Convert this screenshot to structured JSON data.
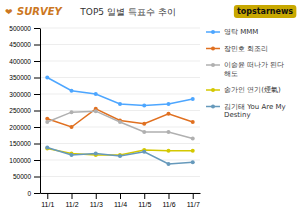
{
  "chart_data": {
    "type": "line",
    "title": "TOP5 일별 득표수 추이",
    "annotations": [
      "❤",
      "SURVEY",
      "topstarnews"
    ],
    "categories": [
      "11/1",
      "11/2",
      "11/3",
      "11/4",
      "11/5",
      "11/6",
      "11/7"
    ],
    "series": [
      {
        "name": "영탁 MMM",
        "color": "#4da6ff",
        "values": [
          350000,
          310000,
          300000,
          270000,
          265000,
          270000,
          285000
        ]
      },
      {
        "name": "장민호 회조리",
        "color": "#e07020",
        "values": [
          225000,
          200000,
          255000,
          220000,
          210000,
          240000,
          215000
        ]
      },
      {
        "name": "이승윤 떠나가 된다\n해도",
        "color": "#b0b0b0",
        "values": [
          215000,
          245000,
          248000,
          215000,
          185000,
          185000,
          165000
        ]
      },
      {
        "name": "송가인 연기(煙氣)",
        "color": "#d4c800",
        "values": [
          135000,
          120000,
          115000,
          115000,
          130000,
          128000,
          128000
        ]
      },
      {
        "name": "김기태 You Are My\nDestiny",
        "color": "#6699bb",
        "values": [
          138000,
          115000,
          120000,
          112000,
          125000,
          88000,
          93000
        ]
      }
    ],
    "ylim": [
      0,
      500000
    ],
    "yticks": [
      0,
      50000,
      100000,
      150000,
      200000,
      250000,
      300000,
      350000,
      400000,
      450000,
      500000
    ],
    "grid": true,
    "legend": "right",
    "marker": "circle"
  }
}
